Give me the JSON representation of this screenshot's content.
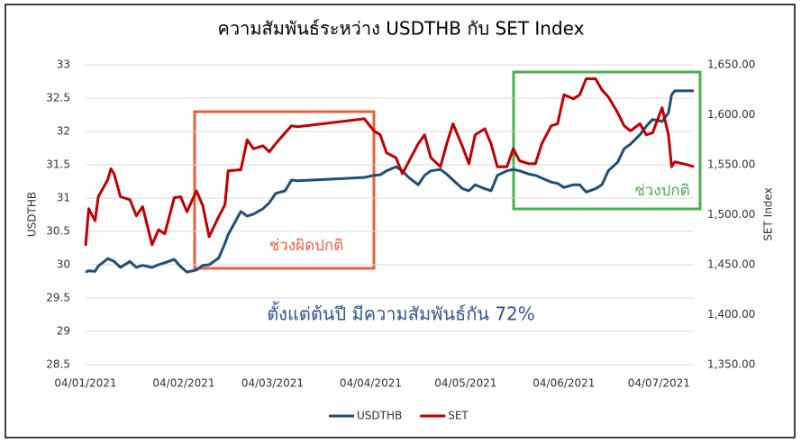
{
  "chart_data": {
    "type": "line",
    "title": "ความสัมพันธ์ระหว่าง USDTHB กับ SET Index",
    "ylabel": "USDTHB",
    "y2label": "SET Index",
    "annotations": [
      "ช่วงผิดปกติ",
      "ช่วงปกติ",
      "ตั้งแต่ต้นปี มีความสัมพันธ์กัน 72%"
    ],
    "x": [
      "2021-01-04",
      "2021-01-05",
      "2021-01-07",
      "2021-01-08",
      "2021-01-11",
      "2021-01-12",
      "2021-01-13",
      "2021-01-15",
      "2021-01-18",
      "2021-01-20",
      "2021-01-22",
      "2021-01-25",
      "2021-01-27",
      "2021-01-29",
      "2021-02-01",
      "2021-02-03",
      "2021-02-05",
      "2021-02-08",
      "2021-02-10",
      "2021-02-12",
      "2021-02-15",
      "2021-02-17",
      "2021-02-18",
      "2021-02-22",
      "2021-02-24",
      "2021-02-26",
      "2021-03-01",
      "2021-03-03",
      "2021-03-05",
      "2021-03-08",
      "2021-03-10",
      "2021-03-12",
      "2021-04-02",
      "2021-04-05",
      "2021-04-07",
      "2021-04-09",
      "2021-04-12",
      "2021-04-14",
      "2021-04-16",
      "2021-04-19",
      "2021-04-21",
      "2021-04-23",
      "2021-04-26",
      "2021-04-28",
      "2021-04-30",
      "2021-05-03",
      "2021-05-05",
      "2021-05-07",
      "2021-05-10",
      "2021-05-12",
      "2021-05-14",
      "2021-05-17",
      "2021-05-19",
      "2021-05-21",
      "2021-05-24",
      "2021-05-26",
      "2021-05-28",
      "2021-05-31",
      "2021-06-02",
      "2021-06-04",
      "2021-06-07",
      "2021-06-09",
      "2021-06-11",
      "2021-06-14",
      "2021-06-16",
      "2021-06-18",
      "2021-06-21",
      "2021-06-23",
      "2021-06-25",
      "2021-06-28",
      "2021-06-30",
      "2021-07-02",
      "2021-07-05",
      "2021-07-07",
      "2021-07-08",
      "2021-07-09",
      "2021-07-13",
      "2021-07-15"
    ],
    "series": [
      {
        "name": "USDTHB",
        "color": "#1f4e79",
        "axis": "y",
        "values": [
          29.89,
          29.91,
          29.9,
          29.98,
          30.09,
          30.07,
          30.05,
          29.96,
          30.05,
          29.96,
          29.99,
          29.96,
          30.0,
          30.03,
          30.08,
          29.97,
          29.89,
          29.92,
          29.99,
          30.0,
          30.1,
          30.32,
          30.45,
          30.8,
          30.73,
          30.76,
          30.84,
          30.93,
          31.07,
          31.11,
          31.27,
          31.26,
          31.31,
          31.34,
          31.35,
          31.41,
          31.47,
          31.41,
          31.31,
          31.2,
          31.34,
          31.41,
          31.43,
          31.36,
          31.27,
          31.14,
          31.11,
          31.2,
          31.14,
          31.11,
          31.34,
          31.41,
          31.43,
          31.41,
          31.36,
          31.34,
          31.3,
          31.24,
          31.22,
          31.16,
          31.2,
          31.2,
          31.09,
          31.14,
          31.2,
          31.41,
          31.54,
          31.74,
          31.81,
          31.95,
          32.08,
          32.18,
          32.15,
          32.28,
          32.55,
          32.61,
          32.61,
          32.61
        ]
      },
      {
        "name": "SET",
        "color": "#c00000",
        "axis": "y2",
        "values": [
          1469,
          1506,
          1494,
          1518,
          1535,
          1546,
          1541,
          1518,
          1515,
          1499,
          1508,
          1470,
          1485,
          1481,
          1517,
          1518,
          1503,
          1524,
          1509,
          1478,
          1498,
          1510,
          1544,
          1545,
          1575,
          1566,
          1569,
          1563,
          1571,
          1582,
          1589,
          1588,
          1596,
          1584,
          1580,
          1562,
          1557,
          1541,
          1553,
          1571,
          1580,
          1557,
          1548,
          1571,
          1591,
          1568,
          1551,
          1580,
          1586,
          1571,
          1548,
          1548,
          1566,
          1554,
          1551,
          1551,
          1571,
          1589,
          1591,
          1620,
          1616,
          1620,
          1636,
          1636,
          1625,
          1618,
          1602,
          1589,
          1584,
          1591,
          1580,
          1582,
          1607,
          1580,
          1548,
          1553,
          1550,
          1548
        ]
      }
    ],
    "xlim": [
      "2021-01-04",
      "2021-07-15"
    ],
    "xticks": [
      {
        "value": "2021-01-04",
        "label": "04/01/2021"
      },
      {
        "value": "2021-02-04",
        "label": "04/02/2021"
      },
      {
        "value": "2021-03-04",
        "label": "04/03/2021"
      },
      {
        "value": "2021-04-04",
        "label": "04/04/2021"
      },
      {
        "value": "2021-05-04",
        "label": "04/05/2021"
      },
      {
        "value": "2021-06-04",
        "label": "04/06/2021"
      },
      {
        "value": "2021-07-04",
        "label": "04/07/2021"
      }
    ],
    "ylim": [
      28.5,
      33
    ],
    "yticks": [
      28.5,
      29,
      29.5,
      30,
      30.5,
      31,
      31.5,
      32,
      32.5,
      33
    ],
    "y2lim": [
      1350,
      1650
    ],
    "y2ticks": [
      {
        "value": 1350,
        "label": "1,350.00"
      },
      {
        "value": 1400,
        "label": "1,400.00"
      },
      {
        "value": 1450,
        "label": "1,450.00"
      },
      {
        "value": 1500,
        "label": "1,500.00"
      },
      {
        "value": 1550,
        "label": "1,550.00"
      },
      {
        "value": 1600,
        "label": "1,600.00"
      },
      {
        "value": 1650,
        "label": "1,650.00"
      }
    ],
    "grid": true,
    "legend": "bottom"
  }
}
